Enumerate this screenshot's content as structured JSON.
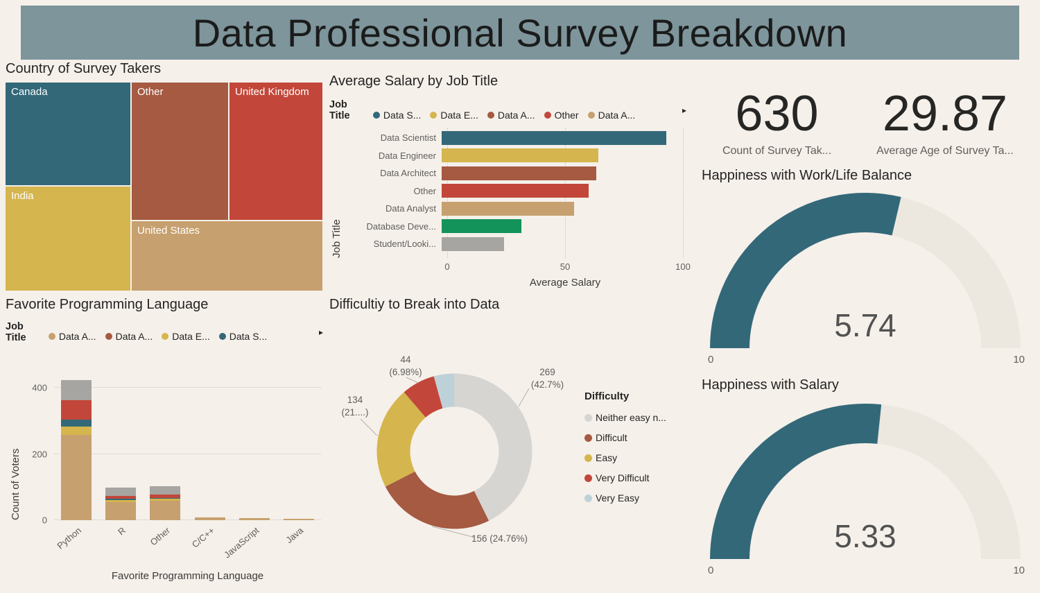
{
  "header": {
    "title": "Data Professional Survey Breakdown"
  },
  "icons": {
    "legend_scroll": "▸"
  },
  "cards": [
    {
      "value": "630",
      "label": "Count of Survey Tak..."
    },
    {
      "value": "29.87",
      "label": "Average Age of Survey Ta..."
    }
  ],
  "chart_data": [
    {
      "id": "country_treemap",
      "type": "treemap",
      "title": "Country of Survey Takers",
      "items": [
        {
          "label": "Canada",
          "color": "#336879"
        },
        {
          "label": "Other",
          "color": "#a55a41"
        },
        {
          "label": "United Kingdom",
          "color": "#c2473a"
        },
        {
          "label": "India",
          "color": "#d5b54d"
        },
        {
          "label": "United States",
          "color": "#c6a06e"
        }
      ]
    },
    {
      "id": "salary_by_job_title",
      "type": "bar",
      "orientation": "horizontal",
      "title": "Average Salary by Job Title",
      "legend_title": "Job Title",
      "legend": [
        {
          "label": "Data S...",
          "color": "#336879"
        },
        {
          "label": "Data E...",
          "color": "#d5b54d"
        },
        {
          "label": "Data A...",
          "color": "#a55a41"
        },
        {
          "label": "Other",
          "color": "#c2473a"
        },
        {
          "label": "Data A...",
          "color": "#c6a06e"
        }
      ],
      "categories": [
        "Data Scientist",
        "Data Engineer",
        "Data Architect",
        "Other",
        "Data Analyst",
        "Database Deve...",
        "Student/Looki..."
      ],
      "values": [
        93,
        65,
        64,
        61,
        55,
        33,
        26
      ],
      "bar_colors": [
        "#336879",
        "#d5b54d",
        "#a55a41",
        "#c2473a",
        "#c6a06e",
        "#13935a",
        "#a7a5a2"
      ],
      "xlabel": "Average Salary",
      "ylabel": "Job Title",
      "xlim": [
        0,
        100
      ],
      "xticks": [
        "0",
        "50",
        "100"
      ]
    },
    {
      "id": "favorite_language",
      "type": "bar",
      "stacked": true,
      "title": "Favorite Programming Language",
      "legend_title": "Job Title",
      "legend": [
        {
          "label": "Data A...",
          "color": "#c6a06e"
        },
        {
          "label": "Data A...",
          "color": "#a55a41"
        },
        {
          "label": "Data E...",
          "color": "#d5b54d"
        },
        {
          "label": "Data S...",
          "color": "#336879"
        }
      ],
      "categories": [
        "Python",
        "R",
        "Other",
        "C/C++",
        "JavaScript",
        "Java"
      ],
      "series": [
        {
          "label": "Data A...",
          "color": "#c6a06e",
          "values": [
            258,
            55,
            58,
            9,
            7,
            4
          ]
        },
        {
          "label": "Data E...",
          "color": "#d5b54d",
          "values": [
            25,
            6,
            7,
            0,
            0,
            0
          ]
        },
        {
          "label": "Data S...",
          "color": "#336879",
          "values": [
            21,
            3,
            3,
            0,
            0,
            0
          ]
        },
        {
          "label": "",
          "color": "#c2473a",
          "values": [
            59,
            10,
            10,
            0,
            0,
            0
          ]
        },
        {
          "label": "",
          "color": "#a7a5a2",
          "values": [
            61,
            24,
            25,
            0,
            0,
            0
          ]
        }
      ],
      "xlabel": "Favorite Programming Language",
      "ylabel": "Count of Voters",
      "ylim": [
        0,
        440
      ],
      "yticks": [
        "0",
        "200",
        "400"
      ]
    },
    {
      "id": "difficulty_donut",
      "type": "pie",
      "donut": true,
      "title": "Difficultiy to Break into Data",
      "legend_title": "Difficulty",
      "slices": [
        {
          "label": "Neither easy n...",
          "value": 269,
          "color": "#d7d5d2",
          "callout": [
            "269",
            "(42.7%)"
          ]
        },
        {
          "label": "Difficult",
          "value": 156,
          "color": "#a55a41",
          "callout": [
            "156 (24.76%)"
          ]
        },
        {
          "label": "Easy",
          "value": 134,
          "color": "#d5b54d",
          "callout": [
            "134",
            "(21....)"
          ]
        },
        {
          "label": "Very Difficult",
          "value": 44,
          "color": "#c2473a",
          "callout": [
            "44",
            "(6.98%)"
          ]
        },
        {
          "label": "Very Easy",
          "value": 27,
          "color": "#bfd1d8",
          "callout": []
        }
      ]
    },
    {
      "id": "gauge_worklife",
      "type": "gauge",
      "title": "Happiness with Work/Life Balance",
      "value": "5.74",
      "min": "0",
      "max": "10",
      "fill_color": "#336879",
      "track_color": "#ece8e0"
    },
    {
      "id": "gauge_salary",
      "type": "gauge",
      "title": "Happiness with Salary",
      "value": "5.33",
      "min": "0",
      "max": "10",
      "fill_color": "#336879",
      "track_color": "#ece8e0"
    }
  ]
}
